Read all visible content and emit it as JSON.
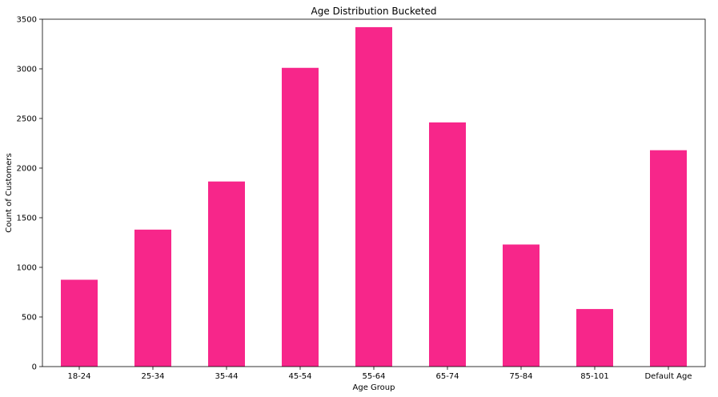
{
  "chart_data": {
    "type": "bar",
    "title": "Age Distribution Bucketed",
    "xlabel": "Age Group",
    "ylabel": "Count of Customers",
    "categories": [
      "18-24",
      "25-34",
      "35-44",
      "45-54",
      "55-64",
      "65-74",
      "75-84",
      "85-101",
      "Default Age"
    ],
    "values": [
      875,
      1380,
      1865,
      3010,
      3420,
      2460,
      1230,
      580,
      2180
    ],
    "ylim": [
      0,
      3500
    ],
    "yticks": [
      0,
      500,
      1000,
      1500,
      2000,
      2500,
      3000,
      3500
    ],
    "bar_color": "#f7268a",
    "grid": false,
    "legend": "none"
  }
}
